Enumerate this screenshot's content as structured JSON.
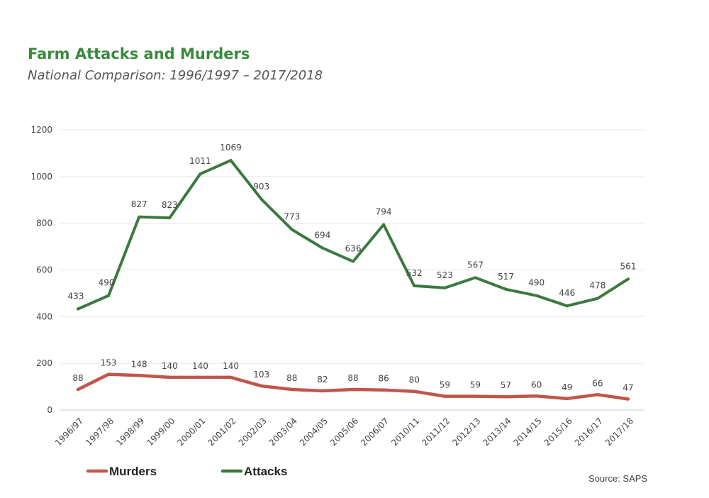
{
  "chart_data": {
    "type": "line",
    "title": "Farm Attacks and Murders",
    "subtitle": "National Comparison: 1996/1997 – 2017/2018",
    "categories": [
      "1996/97",
      "1997/98",
      "1998/99",
      "1999/00",
      "2000/01",
      "2001/02",
      "2002/03",
      "2003/04",
      "2004/05",
      "2005/06",
      "2006/07",
      "2010/11",
      "2011/12",
      "2012/13",
      "2013/14",
      "2014/15",
      "2015/16",
      "2016/17",
      "2017/18"
    ],
    "series": [
      {
        "name": "Murders",
        "color": "#c0564b",
        "values": [
          88,
          153,
          148,
          140,
          140,
          140,
          103,
          88,
          82,
          88,
          86,
          80,
          59,
          59,
          57,
          60,
          49,
          66,
          47
        ]
      },
      {
        "name": "Attacks",
        "color": "#3b7a3f",
        "values": [
          433,
          490,
          827,
          823,
          1011,
          1069,
          903,
          773,
          694,
          636,
          794,
          532,
          523,
          567,
          517,
          490,
          446,
          478,
          561
        ]
      }
    ],
    "yticks": [
      0,
      200,
      400,
      600,
      800,
      1000,
      1200
    ],
    "ylim": [
      0,
      1200
    ],
    "grid": true,
    "legend_position": "bottom-left",
    "source": "Source: SAPS"
  }
}
